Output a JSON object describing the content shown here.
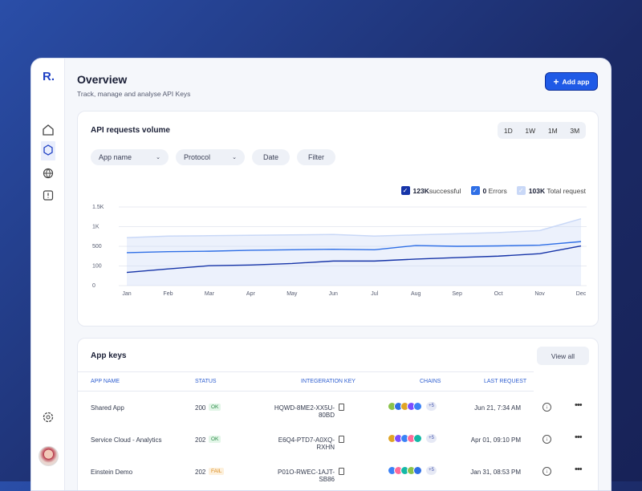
{
  "logo": "R.",
  "header": {
    "title": "Overview",
    "subtitle": "Track, manage and analyse API Keys",
    "button": "Add app"
  },
  "volume": {
    "title": "API requests volume",
    "ranges": [
      "1D",
      "1W",
      "1M",
      "3M"
    ],
    "filters": [
      "App name",
      "Protocol",
      "Date",
      "Filter"
    ]
  },
  "chart_data": {
    "type": "line",
    "categories": [
      "Jan",
      "Feb",
      "Mar",
      "Apr",
      "May",
      "Jun",
      "Jul",
      "Aug",
      "Sep",
      "Oct",
      "Nov",
      "Dec"
    ],
    "series": [
      {
        "name": "successful",
        "total": "123K",
        "color": "#1634a8",
        "values": [
          67,
          85,
          105,
          120,
          150,
          200,
          200,
          240,
          270,
          300,
          350,
          510
        ]
      },
      {
        "name": "Errors",
        "total": "0",
        "color": "#2f6fe6",
        "values": [
          370,
          390,
          400,
          420,
          430,
          440,
          430,
          520,
          500,
          510,
          530,
          620
        ]
      },
      {
        "name": "Total request",
        "total": "103K",
        "color": "#c9d8f7",
        "values": [
          720,
          760,
          770,
          780,
          790,
          800,
          760,
          790,
          820,
          850,
          900,
          1200
        ]
      }
    ],
    "ylim": [
      0,
      1500
    ],
    "yticks": [
      0,
      100,
      500,
      {
        "value": 1000,
        "label": "1K"
      },
      {
        "value": 1500,
        "label": "1.5K"
      }
    ],
    "grid": true
  },
  "keys": {
    "title": "App keys",
    "button": "View all",
    "columns": [
      "APP NAME",
      "STATUS",
      "INTEGERATION KEY",
      "CHAINS",
      "LAST REQUEST"
    ],
    "rows": [
      {
        "name": "Shared App",
        "code": "200",
        "status": "OK",
        "key": "HQWD-8ME2-XX5U-80BD",
        "more": "+5",
        "last": "Jun 21, 7:34 AM"
      },
      {
        "name": "Service Cloud - Analytics",
        "code": "202",
        "status": "OK",
        "key": "E6Q4-PTD7-A0XQ-RXHN",
        "more": "+5",
        "last": "Apr 01, 09:10 PM"
      },
      {
        "name": "Einstein Demo",
        "code": "202",
        "status": "FAIL",
        "key": "P01O-RWEC-1AJT-SB86",
        "more": "+5",
        "last": "Jan 31, 08:53 PM"
      }
    ]
  }
}
